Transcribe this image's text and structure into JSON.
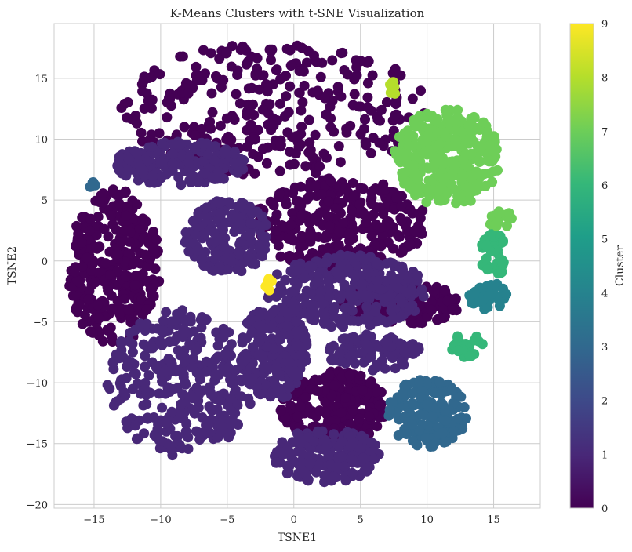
{
  "chart_data": {
    "type": "scatter",
    "title": "K-Means Clusters with t-SNE Visualization",
    "xlabel": "TSNE1",
    "ylabel": "TSNE2",
    "xlim": [
      -18,
      18.5
    ],
    "ylim": [
      -20.3,
      19.5
    ],
    "xticks": [
      -15,
      -10,
      -5,
      0,
      5,
      10,
      15
    ],
    "yticks": [
      -20,
      -15,
      -10,
      -5,
      0,
      5,
      10,
      15
    ],
    "xtick_labels": [
      "−15",
      "−10",
      "−5",
      "0",
      "5",
      "10",
      "15"
    ],
    "ytick_labels": [
      "−20",
      "−15",
      "−10",
      "−5",
      "0",
      "5",
      "10",
      "15"
    ],
    "grid": true,
    "colormap": "viridis",
    "colorbar": {
      "label": "Cluster",
      "range": [
        0,
        9
      ],
      "ticks": [
        0,
        1,
        2,
        3,
        4,
        5,
        6,
        7,
        8,
        9
      ],
      "tick_labels": [
        "0",
        "1",
        "2",
        "3",
        "4",
        "5",
        "6",
        "7",
        "8",
        "9"
      ]
    },
    "colors": {
      "0": "#440154",
      "1": "#482878",
      "3": "#31688e",
      "4": "#26828e",
      "6": "#35b779",
      "7": "#6ece58",
      "8": "#b5de2b",
      "9": "#fde725"
    },
    "clusters": [
      {
        "cluster": 0,
        "regions": [
          {
            "cx": -1.5,
            "cy": 12.5,
            "rx": 11.5,
            "ry": 5.5
          },
          {
            "cx": -13.5,
            "cy": -0.5,
            "rx": 3.5,
            "ry": 6.5
          },
          {
            "cx": 3.5,
            "cy": 3.0,
            "rx": 6.5,
            "ry": 3.8
          },
          {
            "cx": 3.0,
            "cy": -12.0,
            "rx": 4.0,
            "ry": 3.0
          },
          {
            "cx": 8.0,
            "cy": -3.5,
            "rx": 4.5,
            "ry": 1.8
          }
        ]
      },
      {
        "cluster": 1,
        "regions": [
          {
            "cx": -8.5,
            "cy": 8.0,
            "rx": 5.0,
            "ry": 1.8
          },
          {
            "cx": -5.0,
            "cy": 2.0,
            "rx": 3.2,
            "ry": 3.0
          },
          {
            "cx": 4.0,
            "cy": -2.5,
            "rx": 6.0,
            "ry": 3.0
          },
          {
            "cx": -8.5,
            "cy": -10.0,
            "rx": 5.5,
            "ry": 6.0
          },
          {
            "cx": -1.5,
            "cy": -7.5,
            "rx": 2.5,
            "ry": 4.0
          },
          {
            "cx": 2.5,
            "cy": -16.0,
            "rx": 4.0,
            "ry": 2.2
          },
          {
            "cx": 6.0,
            "cy": -7.5,
            "rx": 3.5,
            "ry": 1.5
          }
        ]
      },
      {
        "cluster": 3,
        "regions": [
          {
            "cx": 10.0,
            "cy": -12.5,
            "rx": 3.0,
            "ry": 2.8
          },
          {
            "cx": -15.2,
            "cy": 6.2,
            "rx": 0.3,
            "ry": 0.3
          }
        ]
      },
      {
        "cluster": 4,
        "regions": [
          {
            "cx": 14.5,
            "cy": -2.8,
            "rx": 1.5,
            "ry": 1.2
          }
        ]
      },
      {
        "cluster": 6,
        "regions": [
          {
            "cx": 15.0,
            "cy": 0.5,
            "rx": 1.0,
            "ry": 1.8
          },
          {
            "cx": 13.0,
            "cy": -7.0,
            "rx": 1.2,
            "ry": 1.0
          }
        ]
      },
      {
        "cluster": 7,
        "regions": [
          {
            "cx": 11.5,
            "cy": 8.5,
            "rx": 4.0,
            "ry": 4.0
          },
          {
            "cx": 15.5,
            "cy": 3.5,
            "rx": 1.2,
            "ry": 0.7
          }
        ]
      },
      {
        "cluster": 8,
        "regions": [
          {
            "cx": 7.5,
            "cy": 14.0,
            "rx": 0.4,
            "ry": 0.8
          }
        ]
      },
      {
        "cluster": 9,
        "regions": [
          {
            "cx": -1.9,
            "cy": -1.8,
            "rx": 0.3,
            "ry": 0.7
          }
        ]
      }
    ]
  }
}
